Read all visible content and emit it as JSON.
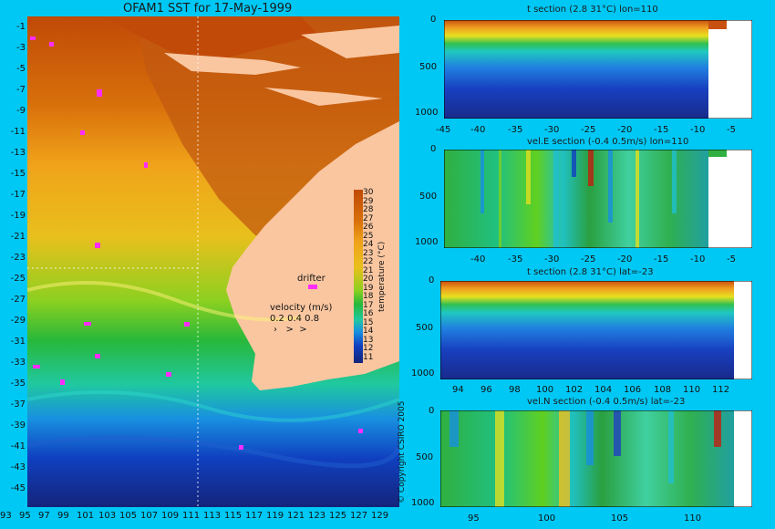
{
  "map": {
    "title": "OFAM1 SST for 17-May-1999",
    "y_ticks": [
      "-1",
      "-3",
      "-5",
      "-7",
      "-9",
      "-11",
      "-13",
      "-15",
      "-17",
      "-19",
      "-21",
      "-23",
      "-25",
      "-27",
      "-29",
      "-31",
      "-33",
      "-35",
      "-37",
      "-39",
      "-41",
      "-43",
      "-45"
    ],
    "x_ticks": [
      "93",
      "95",
      "97",
      "99",
      "101",
      "103",
      "105",
      "107",
      "109",
      "111",
      "113",
      "115",
      "117",
      "119",
      "121",
      "123",
      "125",
      "127",
      "129"
    ],
    "colorbar_values": [
      "30",
      "29",
      "28",
      "27",
      "26",
      "25",
      "24",
      "23",
      "22",
      "21",
      "20",
      "19",
      "18",
      "17",
      "16",
      "15",
      "14",
      "13",
      "12",
      "11"
    ],
    "colorbar_label": "temperature (°C)",
    "drifter_label": "drifter",
    "velocity_label": "velocity (m/s)",
    "velocity_scale": "0.2 0.4 0.8",
    "copyright": "© Copyright CSIRO 2005",
    "colors": {
      "warm": "#c85a10",
      "land": "#f9c6a0",
      "cool": "#1a2a9a",
      "drifter": "#ff2cff"
    }
  },
  "panels": [
    {
      "title": "t section (2.8      31°C) lon=110",
      "x_ticks": [
        "-45",
        "-40",
        "-35",
        "-30",
        "-25",
        "-20",
        "-15",
        "-10",
        "-5"
      ],
      "y_ticks": [
        "0",
        "500",
        "1000"
      ]
    },
    {
      "title": "vel.E section (-0.4      0.5m/s) lon=110",
      "x_ticks": [
        "-40",
        "-35",
        "-30",
        "-25",
        "-20",
        "-15",
        "-10",
        "-5"
      ],
      "y_ticks": [
        "0",
        "500",
        "1000"
      ]
    },
    {
      "title": "t section (2.8      31°C) lat=-23",
      "x_ticks": [
        "94",
        "96",
        "98",
        "100",
        "102",
        "104",
        "106",
        "108",
        "110",
        "112"
      ],
      "y_ticks": [
        "0",
        "500",
        "1000"
      ]
    },
    {
      "title": "vel.N section (-0.4      0.5m/s) lat=-23",
      "x_ticks": [
        "95",
        "100",
        "105",
        "110"
      ],
      "y_ticks": [
        "0",
        "500",
        "1000"
      ]
    }
  ]
}
